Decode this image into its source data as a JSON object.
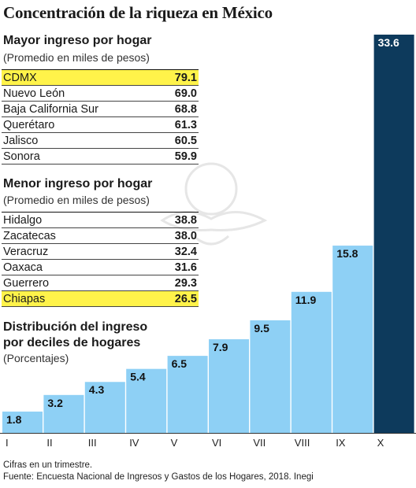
{
  "title": "Concentración de la riqueza en México",
  "mayor": {
    "title": "Mayor ingreso por hogar",
    "subtitle": "(Promedio en miles de pesos)",
    "rows": [
      {
        "name": "CDMX",
        "value": "79.1",
        "highlight": true
      },
      {
        "name": "Nuevo León",
        "value": "69.0",
        "highlight": false
      },
      {
        "name": "Baja California Sur",
        "value": "68.8",
        "highlight": false
      },
      {
        "name": "Querétaro",
        "value": "61.3",
        "highlight": false
      },
      {
        "name": "Jalisco",
        "value": "60.5",
        "highlight": false
      },
      {
        "name": "Sonora",
        "value": "59.9",
        "highlight": false
      }
    ]
  },
  "menor": {
    "title": "Menor ingreso por hogar",
    "subtitle": "(Promedio en miles de pesos)",
    "rows": [
      {
        "name": "Hidalgo",
        "value": "38.8",
        "highlight": false
      },
      {
        "name": "Zacatecas",
        "value": "38.0",
        "highlight": false
      },
      {
        "name": "Veracruz",
        "value": "32.4",
        "highlight": false
      },
      {
        "name": "Oaxaca",
        "value": "31.6",
        "highlight": false
      },
      {
        "name": "Guerrero",
        "value": "29.3",
        "highlight": false
      },
      {
        "name": "Chiapas",
        "value": "26.5",
        "highlight": true
      }
    ]
  },
  "distribution": {
    "title_line1": "Distribución del ingreso",
    "title_line2": "por deciles de hogares",
    "subtitle": "(Porcentajes)"
  },
  "chart_data": {
    "type": "bar",
    "categories": [
      "I",
      "II",
      "III",
      "IV",
      "V",
      "VI",
      "VII",
      "VIII",
      "IX",
      "X"
    ],
    "values": [
      1.8,
      3.2,
      4.3,
      5.4,
      6.5,
      7.9,
      9.5,
      11.9,
      15.8,
      33.6
    ],
    "labels": [
      "1.8",
      "3.2",
      "4.3",
      "5.4",
      "6.5",
      "7.9",
      "9.5",
      "11.9",
      "15.8",
      "33.6"
    ],
    "ylim": [
      0,
      33.6
    ],
    "colors": {
      "bar": "#8ed0f5",
      "bar_top": "#0d3a5c",
      "label_light": "#ffffff",
      "label_dark": "#111111"
    }
  },
  "notes": {
    "line1": "Cifras en un trimestre.",
    "line2": "Fuente: Encuesta Nacional de Ingresos y Gastos de los Hogares, 2018. Inegi"
  }
}
